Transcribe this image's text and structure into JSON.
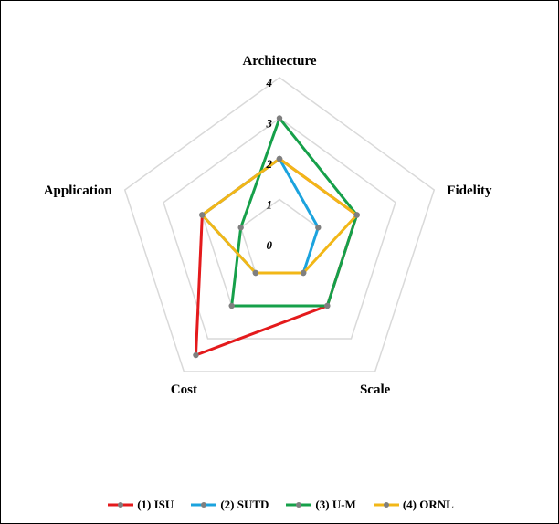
{
  "chart_data": {
    "type": "radar",
    "axes": [
      "Architecture",
      "Fidelity",
      "Scale",
      "Cost",
      "Application"
    ],
    "ticks": [
      "0",
      "1",
      "2",
      "3",
      "4"
    ],
    "range": [
      0,
      4
    ],
    "grid": true,
    "legend_position": "bottom",
    "series": [
      {
        "name": "(1) ISU",
        "color": "#e41a1c",
        "values": [
          2,
          2,
          2,
          3.5,
          2
        ]
      },
      {
        "name": "(2) SUTD",
        "color": "#1ba3de",
        "values": [
          2,
          1,
          1,
          1,
          2
        ]
      },
      {
        "name": "(3) U-M",
        "color": "#16a04a",
        "values": [
          3,
          2,
          2,
          2,
          1
        ]
      },
      {
        "name": "(4) ORNL",
        "color": "#f2b717",
        "values": [
          2,
          2,
          1,
          1,
          2
        ]
      }
    ]
  }
}
